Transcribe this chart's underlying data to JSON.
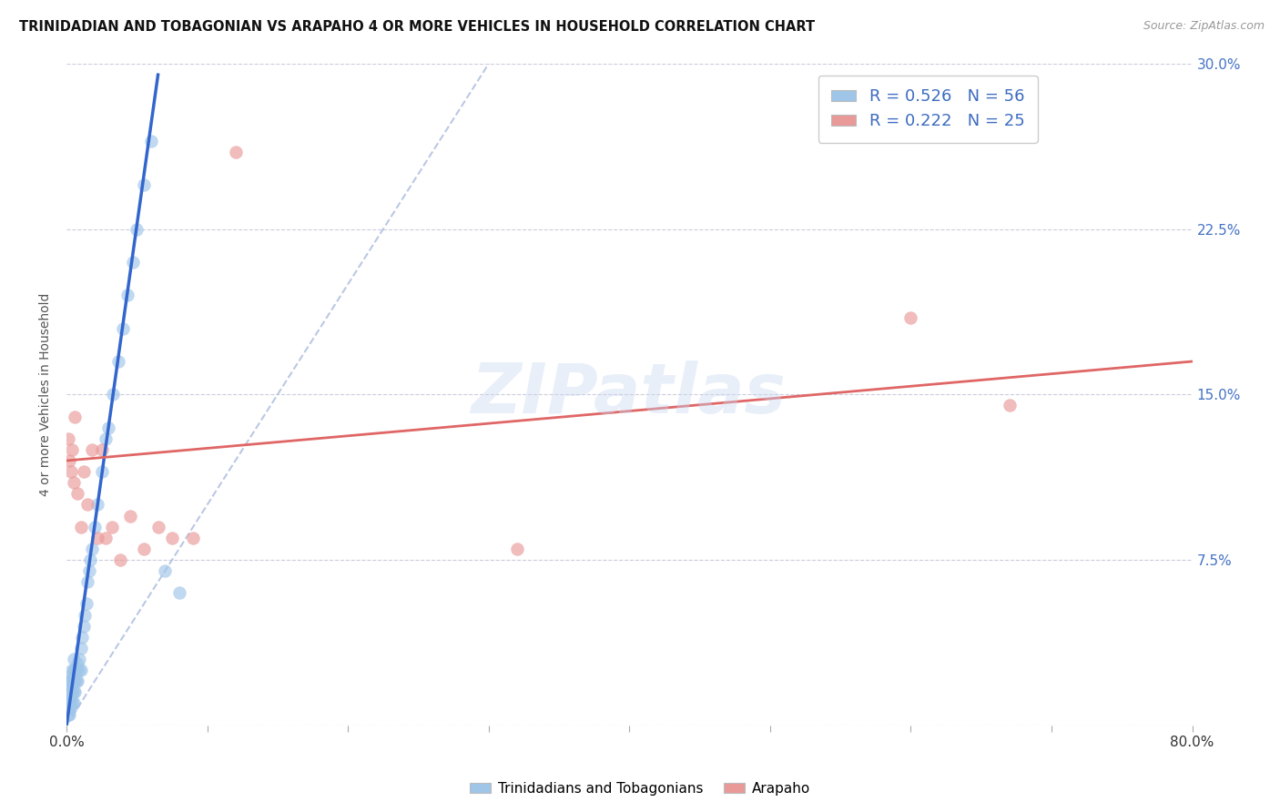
{
  "title": "TRINIDADIAN AND TOBAGONIAN VS ARAPAHO 4 OR MORE VEHICLES IN HOUSEHOLD CORRELATION CHART",
  "source_text": "Source: ZipAtlas.com",
  "ylabel": "4 or more Vehicles in Household",
  "xlim": [
    0.0,
    0.8
  ],
  "ylim": [
    0.0,
    0.3
  ],
  "x_ticks": [
    0.0,
    0.1,
    0.2,
    0.3,
    0.4,
    0.5,
    0.6,
    0.7,
    0.8
  ],
  "x_tick_labels": [
    "0.0%",
    "",
    "",
    "",
    "",
    "",
    "",
    "",
    "80.0%"
  ],
  "y_ticks": [
    0.0,
    0.075,
    0.15,
    0.225,
    0.3
  ],
  "y_tick_labels_right": [
    "",
    "7.5%",
    "15.0%",
    "22.5%",
    "30.0%"
  ],
  "blue_R": 0.526,
  "blue_N": 56,
  "pink_R": 0.222,
  "pink_N": 25,
  "blue_color": "#9fc5e8",
  "pink_color": "#ea9999",
  "blue_line_color": "#3366cc",
  "pink_line_color": "#e06666",
  "diag_line_color": "#aabbdd",
  "legend_label_blue": "Trinidadians and Tobagonians",
  "legend_label_pink": "Arapaho",
  "watermark": "ZIPatlas",
  "blue_scatter_x": [
    0.001,
    0.001,
    0.001,
    0.001,
    0.002,
    0.002,
    0.002,
    0.002,
    0.002,
    0.003,
    0.003,
    0.003,
    0.003,
    0.004,
    0.004,
    0.004,
    0.004,
    0.005,
    0.005,
    0.005,
    0.005,
    0.005,
    0.006,
    0.006,
    0.006,
    0.007,
    0.007,
    0.008,
    0.008,
    0.009,
    0.009,
    0.01,
    0.01,
    0.011,
    0.012,
    0.013,
    0.014,
    0.015,
    0.016,
    0.017,
    0.018,
    0.02,
    0.022,
    0.025,
    0.028,
    0.03,
    0.033,
    0.037,
    0.04,
    0.043,
    0.047,
    0.05,
    0.055,
    0.06,
    0.07,
    0.08
  ],
  "blue_scatter_y": [
    0.005,
    0.01,
    0.015,
    0.02,
    0.005,
    0.008,
    0.012,
    0.018,
    0.022,
    0.008,
    0.012,
    0.015,
    0.02,
    0.01,
    0.015,
    0.02,
    0.025,
    0.01,
    0.015,
    0.02,
    0.025,
    0.03,
    0.015,
    0.02,
    0.025,
    0.02,
    0.025,
    0.02,
    0.028,
    0.025,
    0.03,
    0.025,
    0.035,
    0.04,
    0.045,
    0.05,
    0.055,
    0.065,
    0.07,
    0.075,
    0.08,
    0.09,
    0.1,
    0.115,
    0.13,
    0.135,
    0.15,
    0.165,
    0.18,
    0.195,
    0.21,
    0.225,
    0.245,
    0.265,
    0.07,
    0.06
  ],
  "pink_scatter_x": [
    0.001,
    0.002,
    0.003,
    0.004,
    0.005,
    0.006,
    0.008,
    0.01,
    0.012,
    0.015,
    0.018,
    0.022,
    0.025,
    0.028,
    0.032,
    0.038,
    0.045,
    0.055,
    0.065,
    0.075,
    0.09,
    0.12,
    0.32,
    0.6,
    0.67
  ],
  "pink_scatter_y": [
    0.13,
    0.12,
    0.115,
    0.125,
    0.11,
    0.14,
    0.105,
    0.09,
    0.115,
    0.1,
    0.125,
    0.085,
    0.125,
    0.085,
    0.09,
    0.075,
    0.095,
    0.08,
    0.09,
    0.085,
    0.085,
    0.26,
    0.08,
    0.185,
    0.145
  ],
  "blue_line_x": [
    0.0,
    0.065
  ],
  "blue_line_y": [
    0.0,
    0.295
  ],
  "pink_line_x": [
    0.0,
    0.8
  ],
  "pink_line_y": [
    0.12,
    0.165
  ],
  "diag_line_x": [
    0.0,
    0.3
  ],
  "diag_line_y": [
    0.0,
    0.3
  ]
}
